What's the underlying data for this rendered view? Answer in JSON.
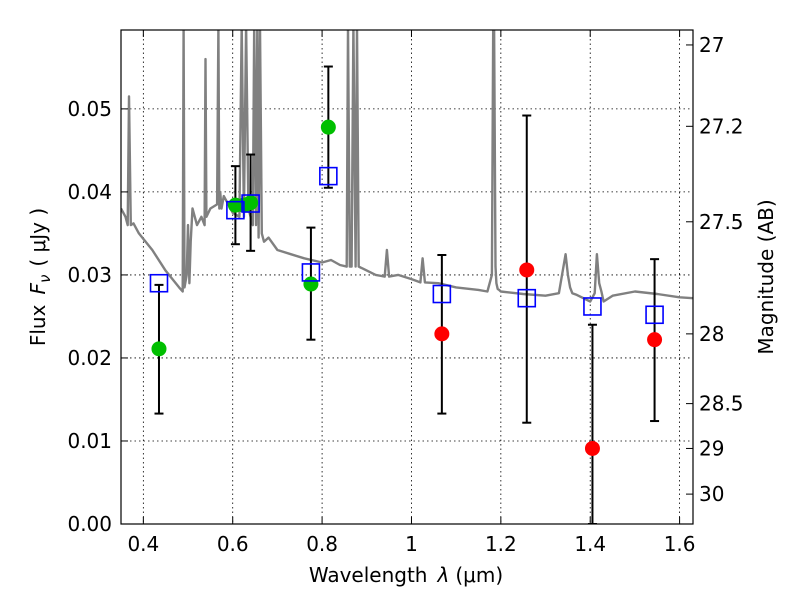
{
  "chart_data": {
    "type": "scatter",
    "xlabel_prefix": "Wavelength",
    "xlabel_symbol": "λ",
    "xlabel_unit": "(μm)",
    "ylabel_prefix": "Flux",
    "ylabel_symbol": "F",
    "ylabel_subscript": "ν",
    "ylabel_unit": "( μJy )",
    "ylabel_right": "Magnitude (AB)",
    "xlim": [
      0.35,
      1.63
    ],
    "ylim": [
      0.0,
      0.0595
    ],
    "xticks": [
      0.4,
      0.6,
      0.8,
      1.0,
      1.2,
      1.4,
      1.6
    ],
    "xtick_labels": [
      "0.4",
      "0.6",
      "0.8",
      "1",
      "1.2",
      "1.4",
      "1.6"
    ],
    "yticks": [
      0.0,
      0.01,
      0.02,
      0.03,
      0.04,
      0.05
    ],
    "ytick_labels": [
      "0.00",
      "0.01",
      "0.02",
      "0.03",
      "0.04",
      "0.05"
    ],
    "right_ticks": [
      {
        "label": "27",
        "flux": 0.0577
      },
      {
        "label": "27.2",
        "flux": 0.0479
      },
      {
        "label": "27.5",
        "flux": 0.0364
      },
      {
        "label": "28",
        "flux": 0.0229
      },
      {
        "label": "28.5",
        "flux": 0.0145
      },
      {
        "label": "29",
        "flux": 0.0091
      },
      {
        "label": "30",
        "flux": 0.0036
      }
    ],
    "grid": true,
    "colors": {
      "green": "#00bf00",
      "red": "#ff0000",
      "model_box": "#0000ff",
      "spectrum": "#808080",
      "errorbar": "#000000"
    },
    "series": [
      {
        "name": "observed (green)",
        "color": "green",
        "points": [
          {
            "x": 0.435,
            "y": 0.0211,
            "err_lo": 0.0133,
            "err_hi": 0.0288
          },
          {
            "x": 0.606,
            "y": 0.0384,
            "err_lo": 0.0337,
            "err_hi": 0.0431
          },
          {
            "x": 0.625,
            "y": 0.0384,
            "err_lo": null,
            "err_hi": null
          },
          {
            "x": 0.64,
            "y": 0.0387,
            "err_lo": 0.0329,
            "err_hi": 0.0445
          },
          {
            "x": 0.775,
            "y": 0.0289,
            "err_lo": 0.0222,
            "err_hi": 0.0357
          },
          {
            "x": 0.814,
            "y": 0.0478,
            "err_lo": 0.0405,
            "err_hi": 0.0551
          }
        ]
      },
      {
        "name": "observed (red)",
        "color": "red",
        "points": [
          {
            "x": 1.068,
            "y": 0.0229,
            "err_lo": 0.0133,
            "err_hi": 0.0324
          },
          {
            "x": 1.258,
            "y": 0.0306,
            "err_lo": 0.0122,
            "err_hi": 0.0492
          },
          {
            "x": 1.405,
            "y": 0.0091,
            "err_lo": 0.0,
            "err_hi": 0.024
          },
          {
            "x": 1.544,
            "y": 0.0222,
            "err_lo": 0.0124,
            "err_hi": 0.0319
          }
        ]
      },
      {
        "name": "model photometry",
        "color": "model_box",
        "marker": "square",
        "points": [
          {
            "x": 0.435,
            "y": 0.029
          },
          {
            "x": 0.606,
            "y": 0.0378
          },
          {
            "x": 0.64,
            "y": 0.0386
          },
          {
            "x": 0.775,
            "y": 0.0303
          },
          {
            "x": 0.814,
            "y": 0.0419
          },
          {
            "x": 1.068,
            "y": 0.0277
          },
          {
            "x": 1.258,
            "y": 0.0272
          },
          {
            "x": 1.405,
            "y": 0.0262
          },
          {
            "x": 1.544,
            "y": 0.0252
          }
        ]
      }
    ],
    "spectrum": {
      "name": "model SED",
      "color": "spectrum",
      "x": [
        0.35,
        0.36,
        0.365,
        0.368,
        0.372,
        0.378,
        0.39,
        0.42,
        0.45,
        0.48,
        0.488,
        0.49,
        0.492,
        0.497,
        0.5,
        0.503,
        0.506,
        0.51,
        0.52,
        0.53,
        0.537,
        0.539,
        0.541,
        0.55,
        0.565,
        0.568,
        0.57,
        0.572,
        0.575,
        0.58,
        0.59,
        0.6,
        0.615,
        0.62,
        0.625,
        0.63,
        0.635,
        0.645,
        0.648,
        0.652,
        0.655,
        0.658,
        0.661,
        0.665,
        0.67,
        0.68,
        0.7,
        0.73,
        0.76,
        0.8,
        0.82,
        0.84,
        0.855,
        0.858,
        0.862,
        0.866,
        0.87,
        0.875,
        0.878,
        0.882,
        0.886,
        0.89,
        0.92,
        0.94,
        0.945,
        0.95,
        0.97,
        1.0,
        1.02,
        1.025,
        1.03,
        1.06,
        1.1,
        1.15,
        1.17,
        1.18,
        1.183,
        1.185,
        1.188,
        1.19,
        1.193,
        1.196,
        1.2,
        1.25,
        1.3,
        1.33,
        1.345,
        1.35,
        1.355,
        1.36,
        1.37,
        1.4,
        1.41,
        1.415,
        1.42,
        1.425,
        1.43,
        1.45,
        1.5,
        1.55,
        1.6,
        1.63
      ],
      "y": [
        0.038,
        0.037,
        0.036,
        0.0515,
        0.036,
        0.0362,
        0.035,
        0.033,
        0.0305,
        0.0285,
        0.028,
        0.06,
        0.0285,
        0.03,
        0.036,
        0.029,
        0.034,
        0.038,
        0.036,
        0.037,
        0.036,
        0.056,
        0.037,
        0.038,
        0.0385,
        0.06,
        0.038,
        0.04,
        0.038,
        0.0395,
        0.0385,
        0.0375,
        0.037,
        0.06,
        0.037,
        0.06,
        0.038,
        0.036,
        0.06,
        0.036,
        0.06,
        0.0345,
        0.06,
        0.035,
        0.034,
        0.0345,
        0.033,
        0.0325,
        0.032,
        0.0315,
        0.0318,
        0.0312,
        0.031,
        0.06,
        0.031,
        0.031,
        0.06,
        0.031,
        0.06,
        0.031,
        0.0309,
        0.0308,
        0.03,
        0.0298,
        0.033,
        0.0298,
        0.03,
        0.0295,
        0.0291,
        0.032,
        0.0291,
        0.029,
        0.0285,
        0.0282,
        0.028,
        0.03,
        0.06,
        0.06,
        0.031,
        0.029,
        0.0283,
        0.0282,
        0.028,
        0.0277,
        0.0275,
        0.0278,
        0.0325,
        0.03,
        0.0285,
        0.0278,
        0.0276,
        0.0268,
        0.0278,
        0.0325,
        0.029,
        0.028,
        0.0268,
        0.0275,
        0.028,
        0.0277,
        0.0273,
        0.0272
      ]
    }
  }
}
